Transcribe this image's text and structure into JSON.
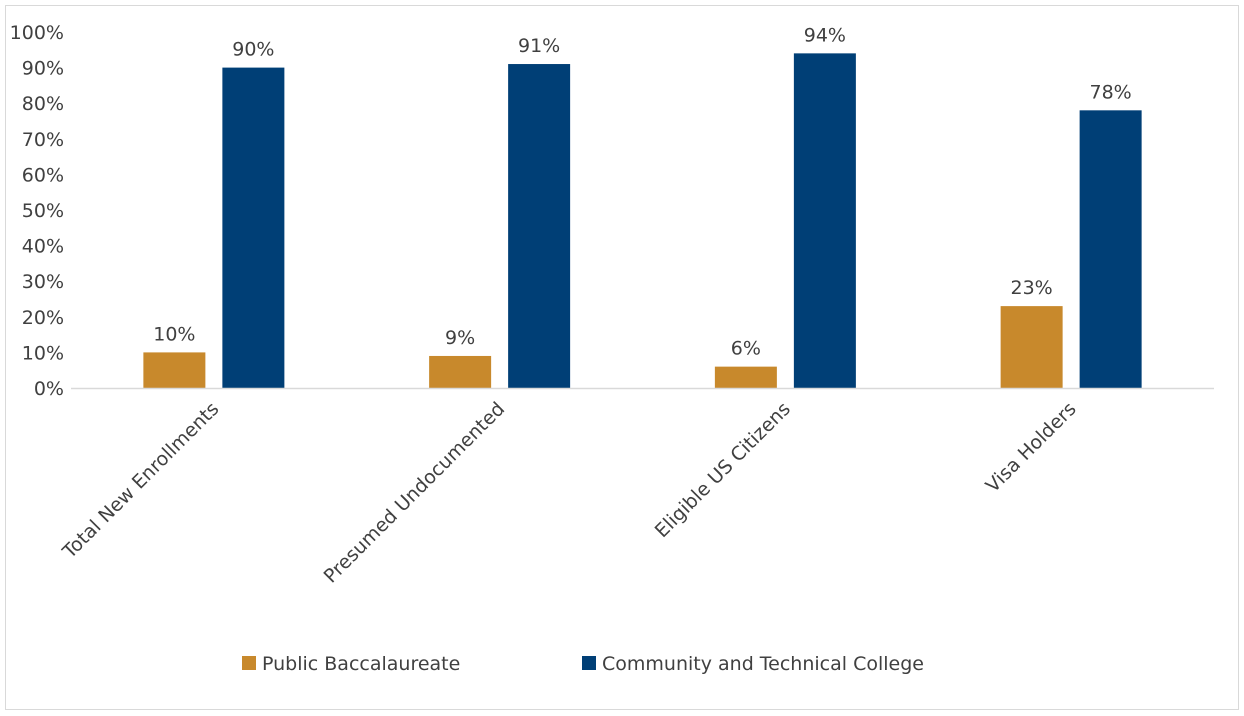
{
  "chart_data": {
    "type": "bar",
    "categories": [
      "Total New Enrollments",
      "Presumed Undocumented",
      "Eligible US Citizens",
      "Visa Holders"
    ],
    "series": [
      {
        "name": "Public Baccalaureate",
        "color": "#c8892c",
        "values": [
          10,
          9,
          6,
          23
        ],
        "labels": [
          "10%",
          "9%",
          "6%",
          "23%"
        ]
      },
      {
        "name": "Community and Technical College",
        "color": "#003f76",
        "values": [
          90,
          91,
          94,
          78
        ],
        "labels": [
          "90%",
          "91%",
          "94%",
          "78%"
        ]
      }
    ],
    "title": "",
    "xlabel": "",
    "ylabel": "",
    "ylim": [
      0,
      100
    ],
    "yticks": [
      "0%",
      "10%",
      "20%",
      "30%",
      "40%",
      "50%",
      "60%",
      "70%",
      "80%",
      "90%",
      "100%"
    ],
    "grid": false,
    "legend_position": "bottom"
  }
}
